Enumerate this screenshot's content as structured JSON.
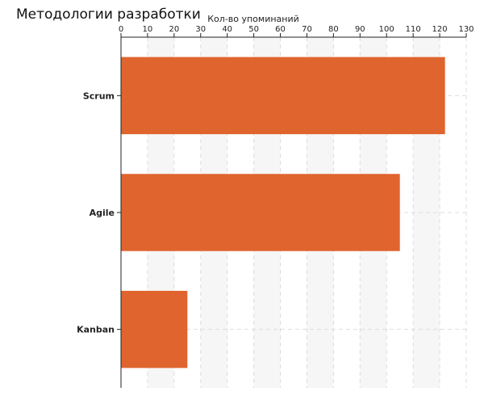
{
  "chart_data": {
    "type": "bar",
    "orientation": "horizontal",
    "title": "Методологии разработки",
    "xlabel": "Кол-во упоминаний",
    "ylabel": "",
    "categories": [
      "Scrum",
      "Agile",
      "Kanban"
    ],
    "values": [
      122,
      105,
      25
    ],
    "xlim": [
      0,
      130
    ],
    "x_ticks": [
      0,
      10,
      20,
      30,
      40,
      50,
      60,
      70,
      80,
      90,
      100,
      110,
      120,
      130
    ],
    "x_axis_position": "top",
    "grid": true,
    "alternating_bands": true,
    "bar_color": "#e0642e",
    "band_color": "#f6f6f6",
    "grid_color": "#dddddd"
  }
}
